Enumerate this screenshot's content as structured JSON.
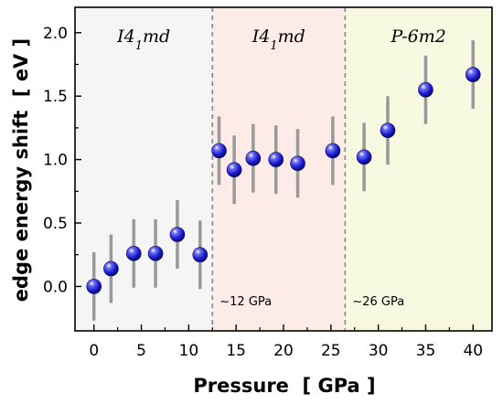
{
  "chart_data": {
    "type": "scatter",
    "xlabel": "Pressure  [ GPa ]",
    "ylabel": "edge energy shift  [ eV ]",
    "xlim": [
      -2,
      42
    ],
    "ylim": [
      -0.35,
      2.2
    ],
    "xticks": [
      0,
      5,
      10,
      15,
      20,
      25,
      30,
      35,
      40
    ],
    "yticks": [
      0.0,
      0.5,
      1.0,
      1.5,
      2.0
    ],
    "ytick_labels": [
      "0.0",
      "0.5",
      "1.0",
      "1.5",
      "2.0"
    ],
    "grid": false,
    "legend": "none",
    "series": [
      {
        "x": [
          0,
          1.8,
          4.2,
          6.5,
          8.8,
          11.2,
          13.2,
          14.8,
          16.8,
          19.2,
          21.5,
          25.2,
          28.5,
          31,
          35,
          40
        ],
        "y": [
          0.0,
          0.14,
          0.26,
          0.26,
          0.41,
          0.25,
          1.07,
          0.92,
          1.01,
          1.0,
          0.97,
          1.07,
          1.02,
          1.23,
          1.55,
          1.67
        ],
        "yerr": [
          0.27,
          0.27,
          0.27,
          0.27,
          0.27,
          0.27,
          0.27,
          0.27,
          0.27,
          0.27,
          0.27,
          0.27,
          0.27,
          0.27,
          0.27,
          0.27
        ]
      }
    ],
    "phases": [
      {
        "x_start": -2,
        "x_end": 12.5,
        "label_main": "I4",
        "label_sub": "1",
        "label_tail": "md",
        "color": "#f5f5f5"
      },
      {
        "x_start": 12.5,
        "x_end": 26.5,
        "label_main": "I4",
        "label_sub": "1",
        "label_tail": "md",
        "color": "#fdebe7"
      },
      {
        "x_start": 26.5,
        "x_end": 42,
        "label_main": "P-6m2",
        "label_sub": "",
        "label_tail": "",
        "color": "#f7fae1"
      }
    ],
    "boundaries": [
      {
        "x": 12.5,
        "annotation": "~12 GPa"
      },
      {
        "x": 26.5,
        "annotation": "~26 GPa"
      }
    ],
    "colors": {
      "marker": "#1a1acc",
      "error_bar": "#999999",
      "boundary_line": "#888888"
    }
  }
}
